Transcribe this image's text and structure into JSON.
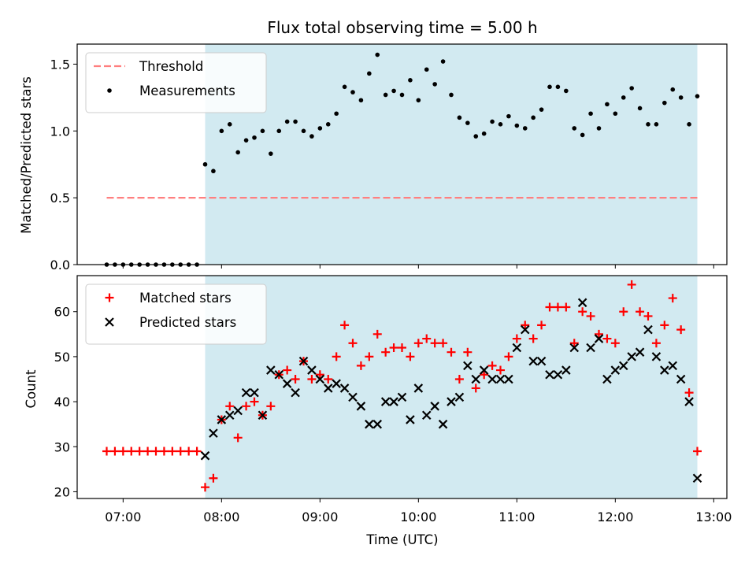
{
  "chart_data": [
    {
      "type": "scatter",
      "title": "Flux total observing time = 5.00 h",
      "xlabel": "",
      "ylabel": "Matched/Predicted stars",
      "xlim": [
        "06:32",
        "13:08"
      ],
      "ylim": [
        0,
        1.65
      ],
      "yticks": [
        0.0,
        0.5,
        1.0,
        1.5
      ],
      "ytick_labels": [
        "0.0",
        "0.5",
        "1.0",
        "1.5"
      ],
      "xticks": [
        "07:00",
        "08:00",
        "09:00",
        "10:00",
        "11:00",
        "12:00",
        "13:00"
      ],
      "shaded_region": {
        "x_start": "07:50",
        "x_end": "12:50",
        "color": "#add8e6"
      },
      "legend": {
        "position": "top-left"
      },
      "threshold": {
        "name": "Threshold",
        "y": 0.5,
        "x_start": "06:50",
        "x_end": "12:50",
        "color": "#ff7f7f",
        "style": "dashed"
      },
      "series": [
        {
          "name": "Measurements",
          "color": "#000000",
          "marker": "dot",
          "points": [
            [
              "06:50",
              0
            ],
            [
              "06:55",
              0
            ],
            [
              "07:00",
              0
            ],
            [
              "07:05",
              0
            ],
            [
              "07:10",
              0
            ],
            [
              "07:15",
              0
            ],
            [
              "07:20",
              0
            ],
            [
              "07:25",
              0
            ],
            [
              "07:30",
              0
            ],
            [
              "07:35",
              0
            ],
            [
              "07:40",
              0
            ],
            [
              "07:45",
              0
            ],
            [
              "07:50",
              0.75
            ],
            [
              "07:55",
              0.7
            ],
            [
              "08:00",
              1.0
            ],
            [
              "08:05",
              1.05
            ],
            [
              "08:10",
              0.84
            ],
            [
              "08:15",
              0.93
            ],
            [
              "08:20",
              0.95
            ],
            [
              "08:25",
              1.0
            ],
            [
              "08:30",
              0.83
            ],
            [
              "08:35",
              1.0
            ],
            [
              "08:40",
              1.07
            ],
            [
              "08:45",
              1.07
            ],
            [
              "08:50",
              1.0
            ],
            [
              "08:55",
              0.96
            ],
            [
              "09:00",
              1.02
            ],
            [
              "09:05",
              1.05
            ],
            [
              "09:10",
              1.13
            ],
            [
              "09:15",
              1.33
            ],
            [
              "09:20",
              1.29
            ],
            [
              "09:25",
              1.23
            ],
            [
              "09:30",
              1.43
            ],
            [
              "09:35",
              1.57
            ],
            [
              "09:40",
              1.27
            ],
            [
              "09:45",
              1.3
            ],
            [
              "09:50",
              1.27
            ],
            [
              "09:55",
              1.38
            ],
            [
              "10:00",
              1.23
            ],
            [
              "10:05",
              1.46
            ],
            [
              "10:10",
              1.35
            ],
            [
              "10:15",
              1.52
            ],
            [
              "10:20",
              1.27
            ],
            [
              "10:25",
              1.1
            ],
            [
              "10:30",
              1.06
            ],
            [
              "10:35",
              0.96
            ],
            [
              "10:40",
              0.98
            ],
            [
              "10:45",
              1.07
            ],
            [
              "10:50",
              1.05
            ],
            [
              "10:55",
              1.11
            ],
            [
              "11:00",
              1.04
            ],
            [
              "11:05",
              1.02
            ],
            [
              "11:10",
              1.1
            ],
            [
              "11:15",
              1.16
            ],
            [
              "11:20",
              1.33
            ],
            [
              "11:25",
              1.33
            ],
            [
              "11:30",
              1.3
            ],
            [
              "11:35",
              1.02
            ],
            [
              "11:40",
              0.97
            ],
            [
              "11:45",
              1.13
            ],
            [
              "11:50",
              1.02
            ],
            [
              "11:55",
              1.2
            ],
            [
              "12:00",
              1.13
            ],
            [
              "12:05",
              1.25
            ],
            [
              "12:10",
              1.32
            ],
            [
              "12:15",
              1.17
            ],
            [
              "12:20",
              1.05
            ],
            [
              "12:25",
              1.05
            ],
            [
              "12:30",
              1.21
            ],
            [
              "12:35",
              1.31
            ],
            [
              "12:40",
              1.25
            ],
            [
              "12:45",
              1.05
            ],
            [
              "12:50",
              1.26
            ]
          ]
        }
      ]
    },
    {
      "type": "scatter",
      "title": "",
      "xlabel": "Time (UTC)",
      "ylabel": "Count",
      "xlim": [
        "06:32",
        "13:08"
      ],
      "ylim": [
        18.5,
        68
      ],
      "yticks": [
        20,
        30,
        40,
        50,
        60
      ],
      "ytick_labels": [
        "20",
        "30",
        "40",
        "50",
        "60"
      ],
      "xticks": [
        "07:00",
        "08:00",
        "09:00",
        "10:00",
        "11:00",
        "12:00",
        "13:00"
      ],
      "xtick_labels": [
        "07:00",
        "08:00",
        "09:00",
        "10:00",
        "11:00",
        "12:00",
        "13:00"
      ],
      "shaded_region": {
        "x_start": "07:50",
        "x_end": "12:50",
        "color": "#add8e6"
      },
      "legend": {
        "position": "top-left"
      },
      "series": [
        {
          "name": "Matched stars",
          "color": "#ff0000",
          "marker": "plus",
          "points": [
            [
              "06:50",
              29
            ],
            [
              "06:55",
              29
            ],
            [
              "07:00",
              29
            ],
            [
              "07:05",
              29
            ],
            [
              "07:10",
              29
            ],
            [
              "07:15",
              29
            ],
            [
              "07:20",
              29
            ],
            [
              "07:25",
              29
            ],
            [
              "07:30",
              29
            ],
            [
              "07:35",
              29
            ],
            [
              "07:40",
              29
            ],
            [
              "07:45",
              29
            ],
            [
              "07:50",
              21
            ],
            [
              "07:55",
              23
            ],
            [
              "08:00",
              36
            ],
            [
              "08:05",
              39
            ],
            [
              "08:10",
              32
            ],
            [
              "08:15",
              39
            ],
            [
              "08:20",
              40
            ],
            [
              "08:25",
              37
            ],
            [
              "08:30",
              39
            ],
            [
              "08:35",
              46
            ],
            [
              "08:40",
              47
            ],
            [
              "08:45",
              45
            ],
            [
              "08:50",
              49
            ],
            [
              "08:55",
              45
            ],
            [
              "09:00",
              46
            ],
            [
              "09:05",
              45
            ],
            [
              "09:10",
              50
            ],
            [
              "09:15",
              57
            ],
            [
              "09:20",
              53
            ],
            [
              "09:25",
              48
            ],
            [
              "09:30",
              50
            ],
            [
              "09:35",
              55
            ],
            [
              "09:40",
              51
            ],
            [
              "09:45",
              52
            ],
            [
              "09:50",
              52
            ],
            [
              "09:55",
              50
            ],
            [
              "10:00",
              53
            ],
            [
              "10:05",
              54
            ],
            [
              "10:10",
              53
            ],
            [
              "10:15",
              53
            ],
            [
              "10:20",
              51
            ],
            [
              "10:25",
              45
            ],
            [
              "10:30",
              51
            ],
            [
              "10:35",
              43
            ],
            [
              "10:40",
              46
            ],
            [
              "10:45",
              48
            ],
            [
              "10:50",
              47
            ],
            [
              "10:55",
              50
            ],
            [
              "11:00",
              54
            ],
            [
              "11:05",
              57
            ],
            [
              "11:10",
              54
            ],
            [
              "11:15",
              57
            ],
            [
              "11:20",
              61
            ],
            [
              "11:25",
              61
            ],
            [
              "11:30",
              61
            ],
            [
              "11:35",
              53
            ],
            [
              "11:40",
              60
            ],
            [
              "11:45",
              59
            ],
            [
              "11:50",
              55
            ],
            [
              "11:55",
              54
            ],
            [
              "12:00",
              53
            ],
            [
              "12:05",
              60
            ],
            [
              "12:10",
              66
            ],
            [
              "12:15",
              60
            ],
            [
              "12:20",
              59
            ],
            [
              "12:25",
              53
            ],
            [
              "12:30",
              57
            ],
            [
              "12:35",
              63
            ],
            [
              "12:40",
              56
            ],
            [
              "12:45",
              42
            ],
            [
              "12:50",
              29
            ]
          ]
        },
        {
          "name": "Predicted stars",
          "color": "#000000",
          "marker": "x",
          "points": [
            [
              "07:50",
              28
            ],
            [
              "07:55",
              33
            ],
            [
              "08:00",
              36
            ],
            [
              "08:05",
              37
            ],
            [
              "08:10",
              38
            ],
            [
              "08:15",
              42
            ],
            [
              "08:20",
              42
            ],
            [
              "08:25",
              37
            ],
            [
              "08:30",
              47
            ],
            [
              "08:35",
              46
            ],
            [
              "08:40",
              44
            ],
            [
              "08:45",
              42
            ],
            [
              "08:50",
              49
            ],
            [
              "08:55",
              47
            ],
            [
              "09:00",
              45
            ],
            [
              "09:05",
              43
            ],
            [
              "09:10",
              44
            ],
            [
              "09:15",
              43
            ],
            [
              "09:20",
              41
            ],
            [
              "09:25",
              39
            ],
            [
              "09:30",
              35
            ],
            [
              "09:35",
              35
            ],
            [
              "09:40",
              40
            ],
            [
              "09:45",
              40
            ],
            [
              "09:50",
              41
            ],
            [
              "09:55",
              36
            ],
            [
              "10:00",
              43
            ],
            [
              "10:05",
              37
            ],
            [
              "10:10",
              39
            ],
            [
              "10:15",
              35
            ],
            [
              "10:20",
              40
            ],
            [
              "10:25",
              41
            ],
            [
              "10:30",
              48
            ],
            [
              "10:35",
              45
            ],
            [
              "10:40",
              47
            ],
            [
              "10:45",
              45
            ],
            [
              "10:50",
              45
            ],
            [
              "10:55",
              45
            ],
            [
              "11:00",
              52
            ],
            [
              "11:05",
              56
            ],
            [
              "11:10",
              49
            ],
            [
              "11:15",
              49
            ],
            [
              "11:20",
              46
            ],
            [
              "11:25",
              46
            ],
            [
              "11:30",
              47
            ],
            [
              "11:35",
              52
            ],
            [
              "11:40",
              62
            ],
            [
              "11:45",
              52
            ],
            [
              "11:50",
              54
            ],
            [
              "11:55",
              45
            ],
            [
              "12:00",
              47
            ],
            [
              "12:05",
              48
            ],
            [
              "12:10",
              50
            ],
            [
              "12:15",
              51
            ],
            [
              "12:20",
              56
            ],
            [
              "12:25",
              50
            ],
            [
              "12:30",
              47
            ],
            [
              "12:35",
              48
            ],
            [
              "12:40",
              45
            ],
            [
              "12:45",
              40
            ],
            [
              "12:50",
              23
            ]
          ]
        }
      ]
    }
  ]
}
